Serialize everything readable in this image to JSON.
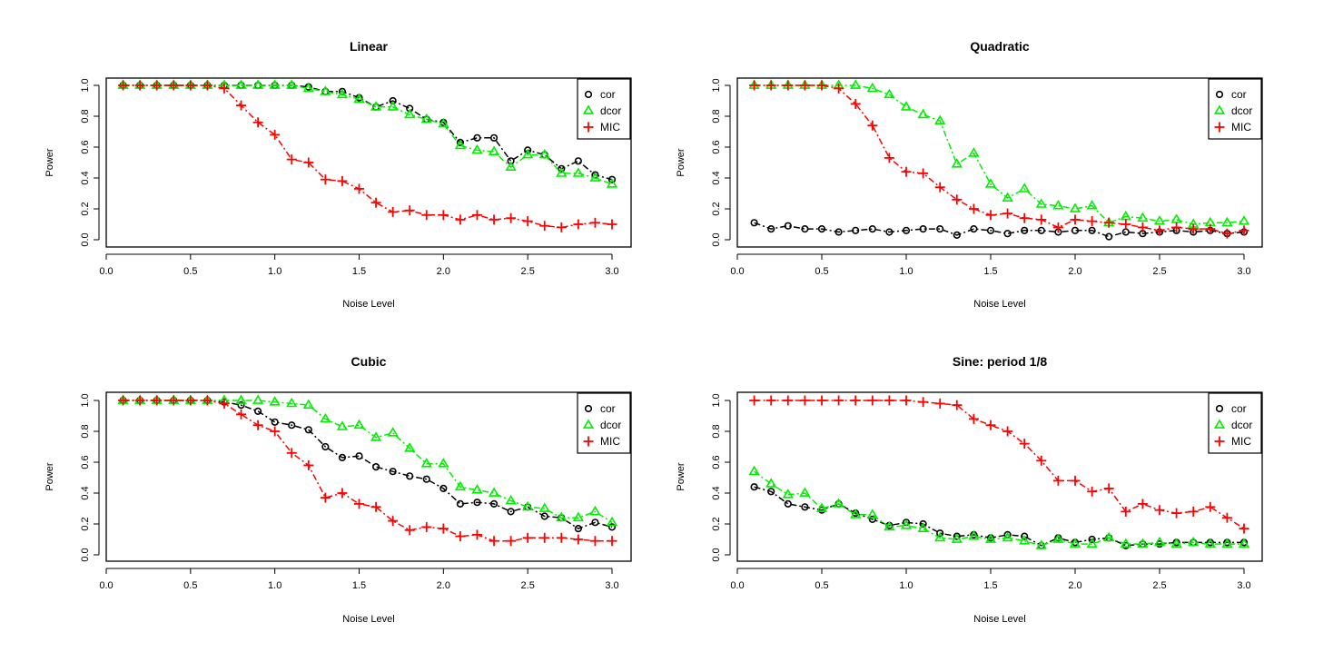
{
  "chart_data": [
    {
      "type": "line",
      "title": "Linear",
      "xlabel": "Noise Level",
      "ylabel": "Power",
      "xlim": [
        0,
        3.0
      ],
      "ylim": [
        0,
        1.0
      ],
      "xticks": [
        "0.0",
        "0.5",
        "1.0",
        "1.5",
        "2.0",
        "2.5",
        "3.0"
      ],
      "yticks": [
        "0.0",
        "0.2",
        "0.4",
        "0.6",
        "0.8",
        "1.0"
      ],
      "legend_position": "top-right",
      "x": [
        0.1,
        0.2,
        0.3,
        0.4,
        0.5,
        0.6,
        0.7,
        0.8,
        0.9,
        1.0,
        1.1,
        1.2,
        1.3,
        1.4,
        1.5,
        1.6,
        1.7,
        1.8,
        1.9,
        2.0,
        2.1,
        2.2,
        2.3,
        2.4,
        2.5,
        2.6,
        2.7,
        2.8,
        2.9,
        3.0
      ],
      "series": [
        {
          "name": "cor",
          "color": "#000000",
          "marker": "circle",
          "values": [
            1.0,
            1.0,
            1.0,
            1.0,
            1.0,
            1.0,
            1.0,
            1.0,
            1.0,
            1.0,
            1.0,
            0.99,
            0.96,
            0.96,
            0.92,
            0.86,
            0.9,
            0.85,
            0.78,
            0.76,
            0.63,
            0.66,
            0.66,
            0.51,
            0.58,
            0.55,
            0.46,
            0.51,
            0.42,
            0.39
          ]
        },
        {
          "name": "dcor",
          "color": "#00ee00",
          "marker": "triangle",
          "values": [
            1.0,
            1.0,
            1.0,
            1.0,
            1.0,
            1.0,
            1.0,
            1.0,
            1.0,
            1.0,
            1.0,
            0.98,
            0.96,
            0.94,
            0.91,
            0.86,
            0.86,
            0.81,
            0.78,
            0.75,
            0.61,
            0.58,
            0.57,
            0.47,
            0.55,
            0.55,
            0.43,
            0.43,
            0.4,
            0.36
          ]
        },
        {
          "name": "MIC",
          "color": "#ff0000",
          "marker": "plus",
          "values": [
            1.0,
            1.0,
            1.0,
            1.0,
            1.0,
            1.0,
            0.98,
            0.87,
            0.76,
            0.68,
            0.52,
            0.5,
            0.39,
            0.38,
            0.33,
            0.24,
            0.18,
            0.19,
            0.16,
            0.16,
            0.13,
            0.16,
            0.13,
            0.14,
            0.12,
            0.09,
            0.08,
            0.1,
            0.11,
            0.1
          ]
        }
      ]
    },
    {
      "type": "line",
      "title": "Quadratic",
      "xlabel": "Noise Level",
      "ylabel": "Power",
      "xlim": [
        0,
        3.0
      ],
      "ylim": [
        0,
        1.0
      ],
      "xticks": [
        "0.0",
        "0.5",
        "1.0",
        "1.5",
        "2.0",
        "2.5",
        "3.0"
      ],
      "yticks": [
        "0.0",
        "0.2",
        "0.4",
        "0.6",
        "0.8",
        "1.0"
      ],
      "legend_position": "top-right",
      "x": [
        0.1,
        0.2,
        0.3,
        0.4,
        0.5,
        0.6,
        0.7,
        0.8,
        0.9,
        1.0,
        1.1,
        1.2,
        1.3,
        1.4,
        1.5,
        1.6,
        1.7,
        1.8,
        1.9,
        2.0,
        2.1,
        2.2,
        2.3,
        2.4,
        2.5,
        2.6,
        2.7,
        2.8,
        2.9,
        3.0
      ],
      "series": [
        {
          "name": "cor",
          "color": "#000000",
          "marker": "circle",
          "values": [
            0.11,
            0.07,
            0.09,
            0.07,
            0.07,
            0.05,
            0.06,
            0.07,
            0.05,
            0.06,
            0.07,
            0.07,
            0.03,
            0.07,
            0.06,
            0.04,
            0.06,
            0.06,
            0.05,
            0.06,
            0.06,
            0.02,
            0.05,
            0.04,
            0.05,
            0.06,
            0.05,
            0.06,
            0.04,
            0.05
          ]
        },
        {
          "name": "dcor",
          "color": "#00ee00",
          "marker": "triangle",
          "values": [
            1.0,
            1.0,
            1.0,
            1.0,
            1.0,
            1.0,
            1.0,
            0.98,
            0.94,
            0.86,
            0.81,
            0.77,
            0.49,
            0.56,
            0.36,
            0.27,
            0.33,
            0.23,
            0.22,
            0.2,
            0.22,
            0.11,
            0.15,
            0.14,
            0.12,
            0.13,
            0.1,
            0.11,
            0.11,
            0.12
          ]
        },
        {
          "name": "MIC",
          "color": "#ff0000",
          "marker": "plus",
          "values": [
            1.0,
            1.0,
            1.0,
            1.0,
            1.0,
            0.98,
            0.88,
            0.74,
            0.53,
            0.44,
            0.43,
            0.34,
            0.26,
            0.2,
            0.16,
            0.17,
            0.14,
            0.13,
            0.08,
            0.13,
            0.12,
            0.11,
            0.1,
            0.08,
            0.06,
            0.08,
            0.07,
            0.07,
            0.04,
            0.06
          ]
        }
      ]
    },
    {
      "type": "line",
      "title": "Cubic",
      "xlabel": "Noise Level",
      "ylabel": "Power",
      "xlim": [
        0,
        3.0
      ],
      "ylim": [
        0,
        1.0
      ],
      "xticks": [
        "0.0",
        "0.5",
        "1.0",
        "1.5",
        "2.0",
        "2.5",
        "3.0"
      ],
      "yticks": [
        "0.0",
        "0.2",
        "0.4",
        "0.6",
        "0.8",
        "1.0"
      ],
      "legend_position": "top-right",
      "x": [
        0.1,
        0.2,
        0.3,
        0.4,
        0.5,
        0.6,
        0.7,
        0.8,
        0.9,
        1.0,
        1.1,
        1.2,
        1.3,
        1.4,
        1.5,
        1.6,
        1.7,
        1.8,
        1.9,
        2.0,
        2.1,
        2.2,
        2.3,
        2.4,
        2.5,
        2.6,
        2.7,
        2.8,
        2.9,
        3.0
      ],
      "series": [
        {
          "name": "cor",
          "color": "#000000",
          "marker": "circle",
          "values": [
            1.0,
            1.0,
            1.0,
            1.0,
            1.0,
            1.0,
            0.99,
            0.97,
            0.93,
            0.86,
            0.84,
            0.81,
            0.7,
            0.63,
            0.64,
            0.57,
            0.54,
            0.51,
            0.49,
            0.43,
            0.33,
            0.34,
            0.33,
            0.28,
            0.31,
            0.25,
            0.24,
            0.17,
            0.21,
            0.18
          ]
        },
        {
          "name": "dcor",
          "color": "#00ee00",
          "marker": "triangle",
          "values": [
            1.0,
            1.0,
            1.0,
            1.0,
            1.0,
            1.0,
            1.0,
            1.0,
            1.0,
            0.99,
            0.98,
            0.97,
            0.88,
            0.83,
            0.84,
            0.76,
            0.79,
            0.69,
            0.59,
            0.59,
            0.44,
            0.42,
            0.4,
            0.35,
            0.31,
            0.3,
            0.24,
            0.24,
            0.28,
            0.21
          ]
        },
        {
          "name": "MIC",
          "color": "#ff0000",
          "marker": "plus",
          "values": [
            1.0,
            1.0,
            1.0,
            1.0,
            1.0,
            1.0,
            0.98,
            0.91,
            0.84,
            0.8,
            0.66,
            0.58,
            0.37,
            0.4,
            0.33,
            0.31,
            0.22,
            0.16,
            0.18,
            0.17,
            0.12,
            0.13,
            0.09,
            0.09,
            0.11,
            0.11,
            0.11,
            0.1,
            0.09,
            0.09
          ]
        }
      ]
    },
    {
      "type": "line",
      "title": "Sine: period 1/8",
      "xlabel": "Noise Level",
      "ylabel": "Power",
      "xlim": [
        0,
        3.0
      ],
      "ylim": [
        0,
        1.0
      ],
      "xticks": [
        "0.0",
        "0.5",
        "1.0",
        "1.5",
        "2.0",
        "2.5",
        "3.0"
      ],
      "yticks": [
        "0.0",
        "0.2",
        "0.4",
        "0.6",
        "0.8",
        "1.0"
      ],
      "legend_position": "top-right",
      "x": [
        0.1,
        0.2,
        0.3,
        0.4,
        0.5,
        0.6,
        0.7,
        0.8,
        0.9,
        1.0,
        1.1,
        1.2,
        1.3,
        1.4,
        1.5,
        1.6,
        1.7,
        1.8,
        1.9,
        2.0,
        2.1,
        2.2,
        2.3,
        2.4,
        2.5,
        2.6,
        2.7,
        2.8,
        2.9,
        3.0
      ],
      "series": [
        {
          "name": "cor",
          "color": "#000000",
          "marker": "circle",
          "values": [
            0.44,
            0.41,
            0.33,
            0.31,
            0.29,
            0.33,
            0.27,
            0.23,
            0.19,
            0.21,
            0.2,
            0.14,
            0.12,
            0.13,
            0.11,
            0.13,
            0.12,
            0.06,
            0.11,
            0.08,
            0.1,
            0.11,
            0.06,
            0.07,
            0.07,
            0.08,
            0.08,
            0.08,
            0.08,
            0.08
          ]
        },
        {
          "name": "dcor",
          "color": "#00ee00",
          "marker": "triangle",
          "values": [
            0.54,
            0.46,
            0.39,
            0.4,
            0.3,
            0.33,
            0.26,
            0.26,
            0.18,
            0.19,
            0.17,
            0.11,
            0.1,
            0.12,
            0.1,
            0.11,
            0.09,
            0.06,
            0.1,
            0.07,
            0.07,
            0.11,
            0.07,
            0.07,
            0.08,
            0.07,
            0.08,
            0.07,
            0.07,
            0.07
          ]
        },
        {
          "name": "MIC",
          "color": "#ff0000",
          "marker": "plus",
          "values": [
            1.0,
            1.0,
            1.0,
            1.0,
            1.0,
            1.0,
            1.0,
            1.0,
            1.0,
            1.0,
            0.99,
            0.98,
            0.97,
            0.88,
            0.84,
            0.8,
            0.72,
            0.61,
            0.48,
            0.48,
            0.41,
            0.43,
            0.28,
            0.33,
            0.29,
            0.27,
            0.28,
            0.31,
            0.24,
            0.17
          ]
        }
      ]
    }
  ]
}
